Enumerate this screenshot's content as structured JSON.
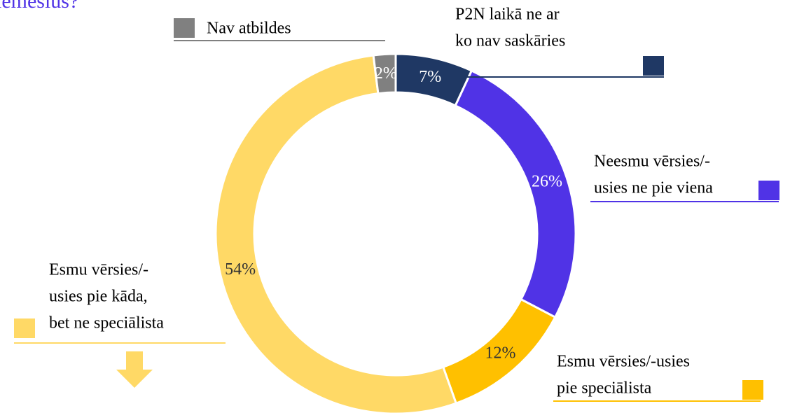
{
  "chart_data": {
    "type": "donut",
    "title": "iemeslus?",
    "categories": [
      [
        "P2N laikā ne ar",
        "ko nav saskāries"
      ],
      [
        "Neesmu vērsies/-",
        "usies ne pie viena"
      ],
      [
        "Esmu vērsies/-usies",
        "pie speciālista"
      ],
      [
        "Esmu vērsies/-",
        "usies pie kāda,",
        "bet ne speciālista"
      ],
      [
        "Nav atbildes"
      ]
    ],
    "values": [
      7,
      26,
      12,
      54,
      2
    ],
    "value_labels": [
      "7%",
      "26%",
      "12%",
      "54%",
      "2%"
    ],
    "colors": [
      "#1f3864",
      "#5033e6",
      "#ffc000",
      "#ffd966",
      "#808080"
    ]
  }
}
